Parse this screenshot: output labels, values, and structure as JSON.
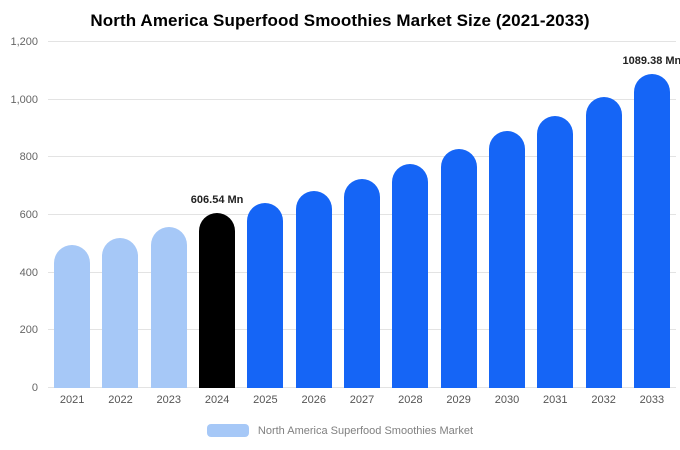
{
  "title": "North America Superfood Smoothies Market Size (2021-2033)",
  "legend": {
    "label": "North America Superfood Smoothies Market",
    "swatch_color": "#a6c8f7"
  },
  "chart_data": {
    "type": "bar",
    "title": "North America Superfood Smoothies Market Size (2021-2033)",
    "categories": [
      "2021",
      "2022",
      "2023",
      "2024",
      "2025",
      "2026",
      "2027",
      "2028",
      "2029",
      "2030",
      "2031",
      "2032",
      "2033"
    ],
    "values": [
      495,
      520,
      560,
      606.54,
      640,
      682,
      725,
      778,
      830,
      890,
      945,
      1008,
      1089.38
    ],
    "unit": "Mn",
    "bar_colors": [
      "#a6c8f7",
      "#a6c8f7",
      "#a6c8f7",
      "#000000",
      "#1565f6",
      "#1565f6",
      "#1565f6",
      "#1565f6",
      "#1565f6",
      "#1565f6",
      "#1565f6",
      "#1565f6",
      "#1565f6"
    ],
    "point_labels": [
      "",
      "",
      "",
      "606.54 Mn",
      "",
      "",
      "",
      "",
      "",
      "",
      "",
      "",
      "1089.38 Mn"
    ],
    "ylim": [
      0,
      1200
    ],
    "yticks": [
      0,
      200,
      400,
      600,
      800,
      1000,
      1200
    ],
    "ytick_labels": [
      "0",
      "200",
      "400",
      "600",
      "800",
      "1,000",
      "1,200"
    ],
    "grid": true,
    "legend_position": "bottom",
    "xlabel": "",
    "ylabel": ""
  },
  "colors": {
    "historical_bar": "#a6c8f7",
    "current_bar": "#000000",
    "forecast_bar": "#1565f6",
    "grid": "#e3e3e3",
    "axis_text": "#666666"
  }
}
